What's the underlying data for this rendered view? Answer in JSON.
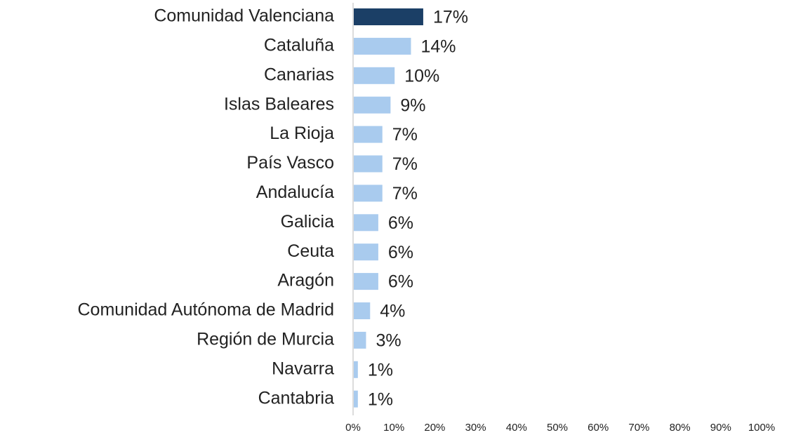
{
  "chart_data": {
    "type": "bar",
    "orientation": "horizontal",
    "categories": [
      "Comunidad Valenciana",
      "Cataluña",
      "Canarias",
      "Islas Baleares",
      "La Rioja",
      "País Vasco",
      "Andalucía",
      "Galicia",
      "Ceuta",
      "Aragón",
      "Comunidad Autónoma de Madrid",
      "Región de Murcia",
      "Navarra",
      "Cantabria"
    ],
    "values": [
      17,
      14,
      10,
      9,
      7,
      7,
      7,
      6,
      6,
      6,
      4,
      3,
      1,
      1
    ],
    "value_labels": [
      "17%",
      "14%",
      "10%",
      "9%",
      "7%",
      "7%",
      "7%",
      "6%",
      "6%",
      "6%",
      "4%",
      "3%",
      "1%",
      "1%"
    ],
    "colors": [
      "#1b3f66",
      "#a9cbee",
      "#a9cbee",
      "#a9cbee",
      "#a9cbee",
      "#a9cbee",
      "#a9cbee",
      "#a9cbee",
      "#a9cbee",
      "#a9cbee",
      "#a9cbee",
      "#a9cbee",
      "#a9cbee",
      "#a9cbee"
    ],
    "xlim": [
      0,
      100
    ],
    "xticks": [
      {
        "value": 0,
        "label": "0%"
      },
      {
        "value": 10,
        "label": "10%"
      },
      {
        "value": 20,
        "label": "20%"
      },
      {
        "value": 30,
        "label": "30%"
      },
      {
        "value": 40,
        "label": "40%"
      },
      {
        "value": 50,
        "label": "50%"
      },
      {
        "value": 60,
        "label": "60%"
      },
      {
        "value": 70,
        "label": "70%"
      },
      {
        "value": 80,
        "label": "80%"
      },
      {
        "value": 90,
        "label": "90%"
      },
      {
        "value": 100,
        "label": "100%"
      }
    ],
    "grid": false
  }
}
